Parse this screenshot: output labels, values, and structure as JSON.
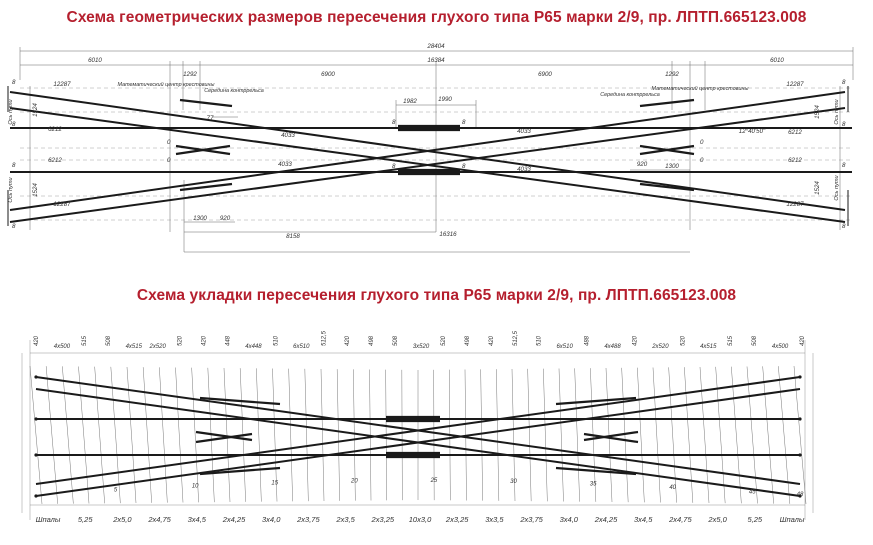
{
  "titles": {
    "geometry": "Схема геометрических размеров пересечения глухого типа Р65 марки 2/9, пр. ЛПТП.665123.008",
    "layout": "Схема укладки пересечения глухого типа Р65 марки 2/9, пр. ЛПТП.665123.008"
  },
  "geometry": {
    "overall_length": "28404",
    "half_length": "16384",
    "left_end": "6010",
    "right_end": "6010",
    "left_mid": "6900",
    "right_mid": "6900",
    "left_1292": "1292",
    "right_1292": "1292",
    "center_1982": "1982",
    "center_1990": "1990",
    "track_12287": "12287",
    "track_6212": "6212",
    "track_4033": "4033",
    "gauge_1524": "1524",
    "offset_77": "77",
    "bottom_1300": "1300",
    "bottom_920": "920",
    "bottom_8158": "8158",
    "bottom_16316": "16316",
    "angle": "12°40'50\"",
    "marker_8": "8",
    "marker_0": "0",
    "label_math_center": "Математический центр крестовины",
    "label_guard_mid": "Середина контррельса",
    "label_axis": "Ось пути"
  },
  "layout": {
    "top_dims": [
      "420",
      "4x500",
      "515",
      "508",
      "4x515",
      "2x520",
      "520",
      "420",
      "448",
      "4x448",
      "510",
      "6x510",
      "512,5",
      "420",
      "498",
      "508",
      "3x520",
      "520",
      "498",
      "420",
      "512,5",
      "510",
      "6x510",
      "488",
      "4x488",
      "420",
      "2x520",
      "520",
      "4x515",
      "515",
      "508",
      "4x500",
      "420"
    ],
    "bottom_dims": [
      "Шпалы",
      "5,25",
      "2x5,0",
      "2x4,75",
      "3x4,5",
      "2x4,25",
      "3x4,0",
      "2x3,75",
      "2x3,5",
      "2x3,25",
      "10x3,0",
      "2x3,25",
      "3x3,5",
      "2x3,75",
      "3x4,0",
      "2x4,25",
      "3x4,5",
      "2x4,75",
      "2x5,0",
      "5,25",
      "Шпалы"
    ],
    "sleeper_numbers": [
      "5",
      "10",
      "15",
      "20",
      "25",
      "30",
      "35",
      "40",
      "45",
      "48"
    ]
  },
  "colors": {
    "title": "#b51f2e",
    "line": "#1a1a1a",
    "thin": "#555555"
  }
}
